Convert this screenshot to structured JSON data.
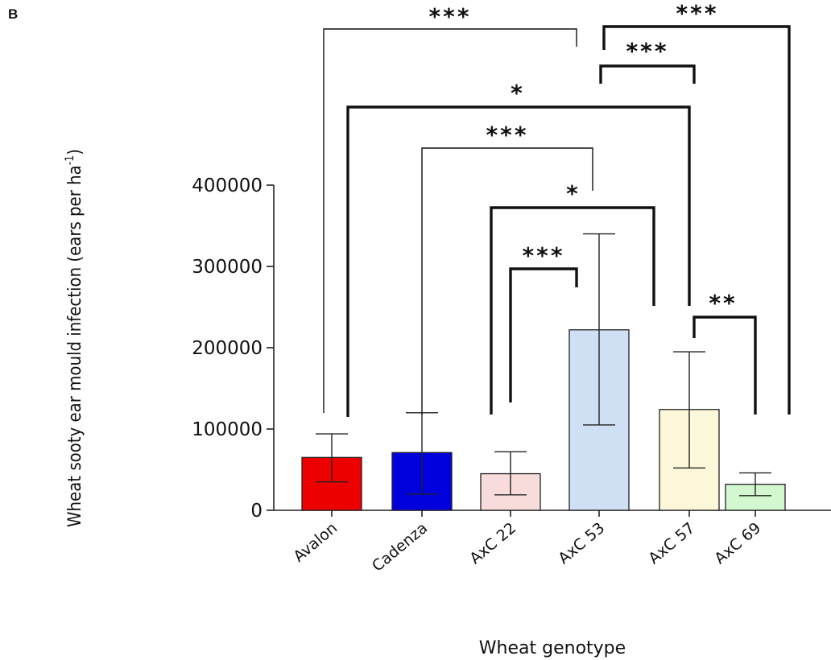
{
  "panel_label": "B",
  "chart_data": {
    "type": "bar",
    "title": "",
    "xlabel": "Wheat genotype",
    "ylabel_main": "Wheat sooty ear mould infection (ears per ha",
    "ylabel_sup": "-1",
    "ylabel_end": ")",
    "ylim": [
      0,
      400000
    ],
    "yticks": [
      0,
      100000,
      200000,
      300000,
      400000
    ],
    "ytick_labels": [
      "0",
      "100000",
      "200000",
      "300000",
      "400000"
    ],
    "categories": [
      "Avalon",
      "Cadenza",
      "AxC 22",
      "AxC 53",
      "AxC 57",
      "AxC 69"
    ],
    "values": [
      65000,
      71000,
      45000,
      222000,
      124000,
      32000
    ],
    "error_low": [
      35000,
      20000,
      19000,
      105000,
      52000,
      18000
    ],
    "error_high": [
      94000,
      120000,
      72000,
      340000,
      195000,
      46000
    ],
    "colors": [
      "#ee0000",
      "#0000dd",
      "#f8dcdc",
      "#cfe0f5",
      "#fbf7d8",
      "#d3f7cf"
    ],
    "grid": false,
    "significance": [
      {
        "pair": [
          "Avalon",
          "AxC 53"
        ],
        "label": "***"
      },
      {
        "pair": [
          "AxC 53",
          "AxC 69"
        ],
        "label": "***"
      },
      {
        "pair": [
          "AxC 53",
          "AxC 57"
        ],
        "label": "***"
      },
      {
        "pair": [
          "Avalon",
          "AxC 57"
        ],
        "label": "*"
      },
      {
        "pair": [
          "Cadenza",
          "AxC 53"
        ],
        "label": "***"
      },
      {
        "pair": [
          "AxC 22",
          "AxC 57"
        ],
        "label": "*"
      },
      {
        "pair": [
          "AxC 22",
          "AxC 53"
        ],
        "label": "***"
      },
      {
        "pair": [
          "AxC 57",
          "AxC 69"
        ],
        "label": "**"
      }
    ]
  }
}
